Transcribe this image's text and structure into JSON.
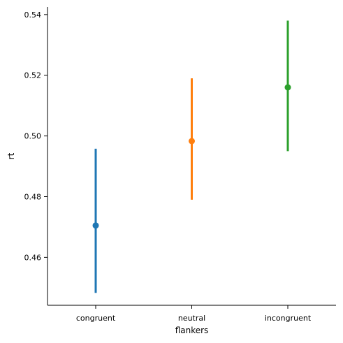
{
  "chart_data": {
    "type": "point",
    "title": "",
    "xlabel": "flankers",
    "ylabel": "rt",
    "categories": [
      "congruent",
      "neutral",
      "incongruent"
    ],
    "colors": [
      "#1f77b4",
      "#ff7f0e",
      "#2ca02c"
    ],
    "values": [
      0.4705,
      0.4983,
      0.516
    ],
    "ci_low": [
      0.4483,
      0.479,
      0.495
    ],
    "ci_high": [
      0.4958,
      0.519,
      0.538
    ],
    "ylim": [
      0.4442,
      0.5425
    ],
    "yticks": [
      0.46,
      0.48,
      0.5,
      0.52,
      0.54
    ],
    "ytick_labels": [
      "0.46",
      "0.48",
      "0.50",
      "0.52",
      "0.54"
    ],
    "grid": false,
    "legend": "none"
  }
}
